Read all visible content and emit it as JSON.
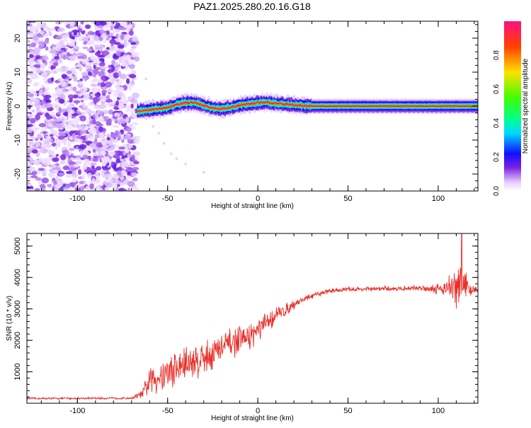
{
  "title": "PAZ1.2025.280.20.16.G18",
  "colors": {
    "snr_line": "#e8302a",
    "dot": "#7a1fe0",
    "frame": "#000000",
    "band_core": "#e8302a"
  },
  "chart_data": [
    {
      "type": "heatmap",
      "name": "spectrogram",
      "xlabel": "Height of straight line (km)",
      "ylabel": "Frequency (Hz)",
      "xlim": [
        -128,
        122
      ],
      "ylim": [
        -25,
        25
      ],
      "xticks": [
        -100,
        -50,
        0,
        50,
        100
      ],
      "yticks": [
        -20,
        -10,
        0,
        10,
        20
      ],
      "noise_region_x": [
        -128,
        -67
      ],
      "noise_level": 0.2,
      "ridge": [
        {
          "x": -67,
          "y": -1.5
        },
        {
          "x": -62,
          "y": -1.2
        },
        {
          "x": -55,
          "y": -0.8
        },
        {
          "x": -50,
          "y": -0.5
        },
        {
          "x": -45,
          "y": 0.5
        },
        {
          "x": -40,
          "y": 1.0
        },
        {
          "x": -35,
          "y": 1.0
        },
        {
          "x": -30,
          "y": 0.2
        },
        {
          "x": -25,
          "y": -0.6
        },
        {
          "x": -20,
          "y": -0.8
        },
        {
          "x": -15,
          "y": -0.4
        },
        {
          "x": -10,
          "y": 0.3
        },
        {
          "x": -5,
          "y": 0.6
        },
        {
          "x": 0,
          "y": 1.0
        },
        {
          "x": 5,
          "y": 1.1
        },
        {
          "x": 10,
          "y": 0.8
        },
        {
          "x": 20,
          "y": 0.3
        },
        {
          "x": 30,
          "y": 0.0
        },
        {
          "x": 122,
          "y": 0.0
        }
      ]
    },
    {
      "type": "colorbar",
      "name": "colorbar",
      "label": "Normalized spectral amplitude",
      "range": [
        0.0,
        1.0
      ],
      "ticks": [
        "0.0",
        "0.2",
        "0.4",
        "0.6",
        "0.8"
      ],
      "stops": [
        {
          "v": 0.0,
          "c": "#ffffff"
        },
        {
          "v": 0.05,
          "c": "#e6d0ff"
        },
        {
          "v": 0.14,
          "c": "#7a1fe0"
        },
        {
          "v": 0.22,
          "c": "#1010ff"
        },
        {
          "v": 0.34,
          "c": "#00d8ff"
        },
        {
          "v": 0.42,
          "c": "#00ff90"
        },
        {
          "v": 0.55,
          "c": "#40ff00"
        },
        {
          "v": 0.7,
          "c": "#ffe000"
        },
        {
          "v": 0.85,
          "c": "#ff4000"
        },
        {
          "v": 1.0,
          "c": "#ff1080"
        }
      ]
    },
    {
      "type": "line",
      "name": "snr",
      "xlabel": "Height of straight line (km)",
      "ylabel": "SNR (10 * v/v)",
      "xlim": [
        -128,
        122
      ],
      "ylim": [
        0,
        5400
      ],
      "xticks": [
        -100,
        -50,
        0,
        50,
        100
      ],
      "yticks": [
        1000,
        2000,
        3000,
        4000,
        5000
      ],
      "x": [
        -128,
        -70,
        -64,
        -60,
        -55,
        -50,
        -45,
        -40,
        -35,
        -30,
        -25,
        -20,
        -15,
        -10,
        -5,
        0,
        5,
        10,
        15,
        20,
        25,
        30,
        35,
        40,
        50,
        60,
        70,
        80,
        90,
        100,
        105,
        108,
        110,
        112,
        114,
        116,
        118,
        122
      ],
      "values": [
        150,
        160,
        300,
        700,
        850,
        1000,
        1100,
        1250,
        1350,
        1450,
        1600,
        1750,
        1900,
        2000,
        2100,
        2300,
        2550,
        2800,
        2950,
        3150,
        3300,
        3400,
        3500,
        3580,
        3620,
        3630,
        3640,
        3650,
        3660,
        3650,
        3700,
        3650,
        3600,
        3700,
        3750,
        3650,
        3600,
        3620
      ],
      "noise_amplitude": [
        40,
        40,
        150,
        550,
        650,
        700,
        750,
        750,
        700,
        680,
        650,
        600,
        550,
        500,
        480,
        450,
        400,
        320,
        250,
        180,
        130,
        110,
        100,
        90,
        90,
        90,
        90,
        90,
        100,
        200,
        400,
        700,
        900,
        1300,
        900,
        500,
        200,
        120
      ],
      "peak": {
        "x": 113,
        "y": 5400
      }
    }
  ]
}
